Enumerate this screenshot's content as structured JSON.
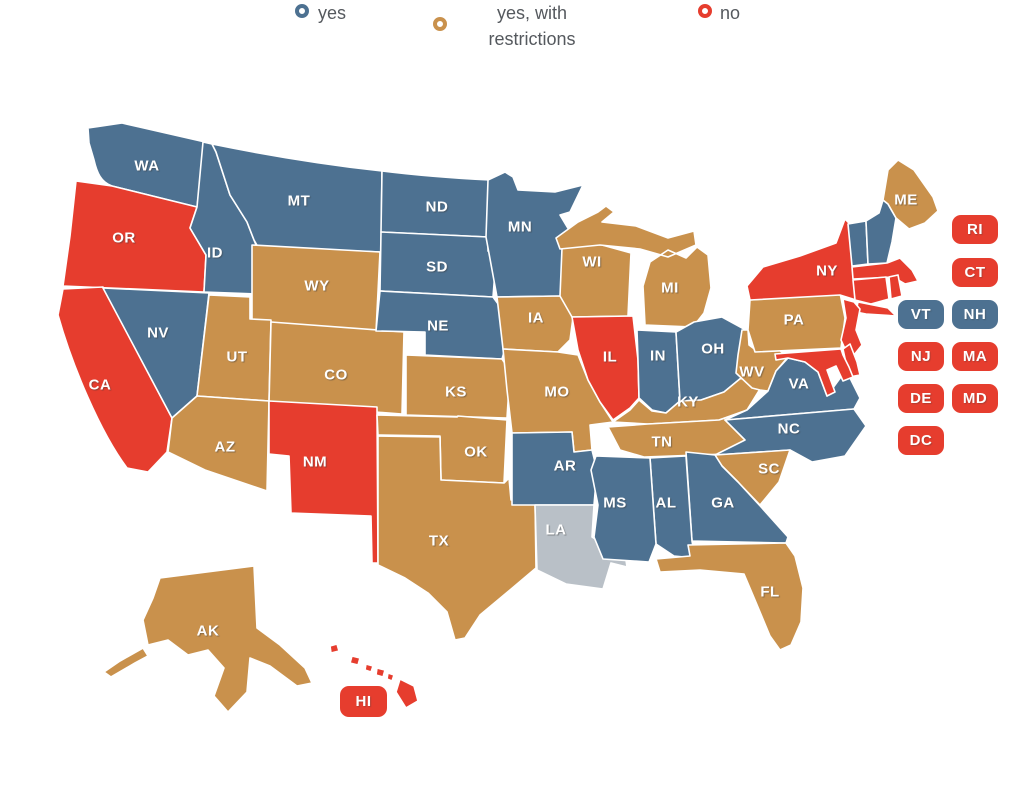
{
  "legend": {
    "items": [
      {
        "id": "yes",
        "label": "yes"
      },
      {
        "id": "yes_restrictions",
        "label": "yes, with restrictions"
      },
      {
        "id": "no",
        "label": "no"
      }
    ]
  },
  "colors": {
    "yes": "#4D7191",
    "yes_restrictions": "#C9914C",
    "no": "#E63D2E",
    "no_data": "#B9C0C7",
    "state_label": "#FFFFFF",
    "legend_text": "#55595E",
    "background": "#FFFFFF"
  },
  "map": {
    "states": [
      {
        "abbr": "WA",
        "status": "yes"
      },
      {
        "abbr": "OR",
        "status": "no"
      },
      {
        "abbr": "CA",
        "status": "no"
      },
      {
        "abbr": "ID",
        "status": "yes"
      },
      {
        "abbr": "NV",
        "status": "yes"
      },
      {
        "abbr": "MT",
        "status": "yes"
      },
      {
        "abbr": "WY",
        "status": "yes_restrictions"
      },
      {
        "abbr": "UT",
        "status": "yes_restrictions"
      },
      {
        "abbr": "CO",
        "status": "yes_restrictions"
      },
      {
        "abbr": "AZ",
        "status": "yes_restrictions"
      },
      {
        "abbr": "NM",
        "status": "no"
      },
      {
        "abbr": "ND",
        "status": "yes"
      },
      {
        "abbr": "SD",
        "status": "yes"
      },
      {
        "abbr": "NE",
        "status": "yes"
      },
      {
        "abbr": "KS",
        "status": "yes_restrictions"
      },
      {
        "abbr": "OK",
        "status": "yes_restrictions"
      },
      {
        "abbr": "TX",
        "status": "yes_restrictions"
      },
      {
        "abbr": "MN",
        "status": "yes"
      },
      {
        "abbr": "IA",
        "status": "yes_restrictions"
      },
      {
        "abbr": "MO",
        "status": "yes_restrictions"
      },
      {
        "abbr": "AR",
        "status": "yes"
      },
      {
        "abbr": "LA",
        "status": "no_data"
      },
      {
        "abbr": "WI",
        "status": "yes_restrictions"
      },
      {
        "abbr": "MI",
        "status": "yes_restrictions"
      },
      {
        "abbr": "IL",
        "status": "no"
      },
      {
        "abbr": "IN",
        "status": "yes"
      },
      {
        "abbr": "OH",
        "status": "yes"
      },
      {
        "abbr": "KY",
        "status": "yes_restrictions"
      },
      {
        "abbr": "TN",
        "status": "yes_restrictions"
      },
      {
        "abbr": "WV",
        "status": "yes_restrictions"
      },
      {
        "abbr": "VA",
        "status": "yes"
      },
      {
        "abbr": "NC",
        "status": "yes"
      },
      {
        "abbr": "SC",
        "status": "yes_restrictions"
      },
      {
        "abbr": "GA",
        "status": "yes"
      },
      {
        "abbr": "AL",
        "status": "yes"
      },
      {
        "abbr": "MS",
        "status": "yes"
      },
      {
        "abbr": "FL",
        "status": "yes_restrictions"
      },
      {
        "abbr": "PA",
        "status": "yes_restrictions"
      },
      {
        "abbr": "NY",
        "status": "no"
      },
      {
        "abbr": "VT",
        "status": "yes"
      },
      {
        "abbr": "NH",
        "status": "yes"
      },
      {
        "abbr": "ME",
        "status": "yes_restrictions"
      },
      {
        "abbr": "MA",
        "status": "no"
      },
      {
        "abbr": "CT",
        "status": "no"
      },
      {
        "abbr": "RI",
        "status": "no"
      },
      {
        "abbr": "NJ",
        "status": "no"
      },
      {
        "abbr": "DE",
        "status": "no"
      },
      {
        "abbr": "MD",
        "status": "no"
      },
      {
        "abbr": "AK",
        "status": "yes_restrictions"
      },
      {
        "abbr": "HI",
        "status": "no"
      }
    ],
    "badges": [
      {
        "abbr": "RI",
        "status": "no"
      },
      {
        "abbr": "CT",
        "status": "no"
      },
      {
        "abbr": "VT",
        "status": "yes"
      },
      {
        "abbr": "NH",
        "status": "yes"
      },
      {
        "abbr": "NJ",
        "status": "no"
      },
      {
        "abbr": "MA",
        "status": "no"
      },
      {
        "abbr": "DE",
        "status": "no"
      },
      {
        "abbr": "MD",
        "status": "no"
      },
      {
        "abbr": "DC",
        "status": "no"
      },
      {
        "abbr": "HI",
        "status": "no"
      }
    ]
  }
}
